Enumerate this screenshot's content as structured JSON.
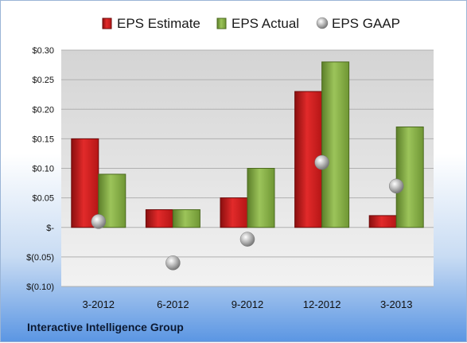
{
  "chart_data": {
    "type": "bar",
    "categories": [
      "3-2012",
      "6-2012",
      "9-2012",
      "12-2012",
      "3-2013"
    ],
    "series": [
      {
        "name": "EPS Estimate",
        "values": [
          0.15,
          0.03,
          0.05,
          0.23,
          0.02
        ],
        "color": "#d21f1f"
      },
      {
        "name": "EPS Actual",
        "values": [
          0.09,
          0.03,
          0.1,
          0.28,
          0.17
        ],
        "color": "#8cb84a"
      },
      {
        "name": "EPS GAAP",
        "values": [
          0.01,
          -0.06,
          -0.02,
          0.11,
          0.07
        ],
        "color": "#a9a9a9",
        "marker": "sphere"
      }
    ],
    "yticks": [
      "$0.30",
      "$0.25",
      "$0.20",
      "$0.15",
      "$0.10",
      "$0.05",
      "$-",
      "$(0.05)",
      "$(0.10)"
    ],
    "ylim": [
      -0.1,
      0.3
    ],
    "grid": true,
    "legend_position": "top"
  },
  "footer": {
    "company": "Interactive Intelligence Group"
  }
}
